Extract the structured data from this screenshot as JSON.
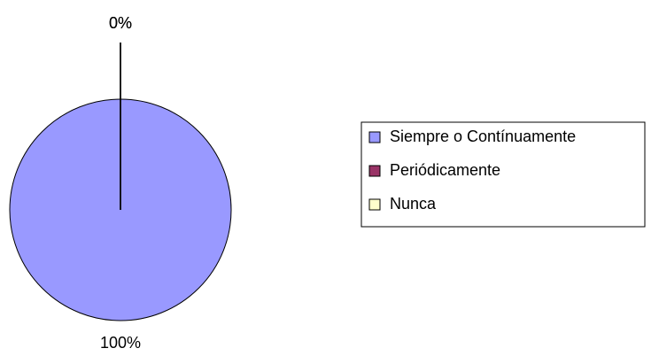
{
  "chart_data": {
    "type": "pie",
    "categories": [
      "Siempre o Contínuamente",
      "Periódicamente",
      "Nunca"
    ],
    "values": [
      100,
      0,
      0
    ],
    "value_labels": [
      "100%",
      "0%",
      "0%"
    ],
    "colors": [
      "#9999ff",
      "#993366",
      "#ffffcc"
    ],
    "legend": "right"
  }
}
